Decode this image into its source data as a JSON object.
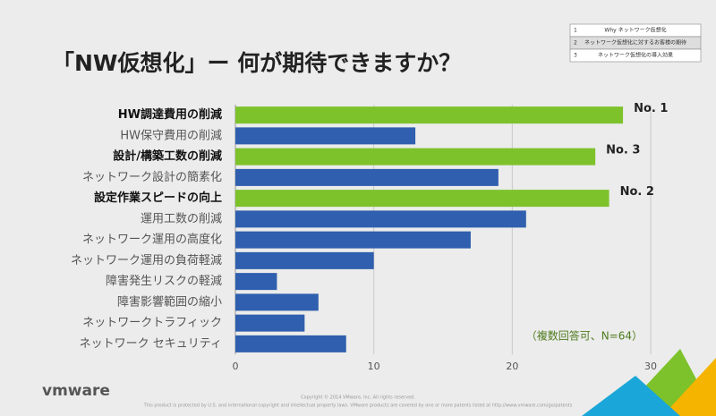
{
  "chart_data": {
    "type": "barh",
    "title": "「NW仮想化」ー 何が期待できますか？",
    "categories": [
      "HW調達費用の削減",
      "HW保守費用の削減",
      "設計/構築工数の削減",
      "ネットワーク設計の簡素化",
      "設定作業スピードの向上",
      "運用工数の削減",
      "ネットワーク運用の高度化",
      "ネットワーク運用の負荷軽減",
      "障害発生リスクの軽減",
      "障害影響範囲の縮小",
      "ネットワークトラフィック",
      "ネットワーク セキュリティ"
    ],
    "values": [
      28,
      13,
      26,
      19,
      27,
      21,
      17,
      10,
      3,
      6,
      5,
      8
    ],
    "colors": [
      "#7dc22b",
      "#2f5fae",
      "#7dc22b",
      "#2f5fae",
      "#7dc22b",
      "#2f5fae",
      "#2f5fae",
      "#2f5fae",
      "#2f5fae",
      "#2f5fae",
      "#2f5fae",
      "#2f5fae"
    ],
    "bold": [
      true,
      false,
      true,
      false,
      true,
      false,
      false,
      false,
      false,
      false,
      false,
      false
    ],
    "rank_labels": [
      "No. 1",
      null,
      "No. 3",
      null,
      "No. 2",
      null,
      null,
      null,
      null,
      null,
      null,
      null
    ],
    "note": "（複数回答可、N=64）",
    "xlim": [
      0,
      30
    ],
    "xticks": [
      0,
      10,
      20,
      30
    ],
    "grid": true
  },
  "nav": [
    {
      "number": "1",
      "label": "Why ネットワーク仮想化"
    },
    {
      "number": "2",
      "label": "ネットワーク仮想化に対するお客様の期待"
    },
    {
      "number": "3",
      "label": "ネットワーク仮想化の導入効果"
    }
  ],
  "footer": {
    "logo": "vmware",
    "copyright": "Copyright © 2014 VMware, Inc. All rights reserved.",
    "legal": "This product is protected by U.S. and international copyright and intellectual property laws. VMware products are covered by one or more patents listed at http://www.vmware.com/go/patents"
  }
}
